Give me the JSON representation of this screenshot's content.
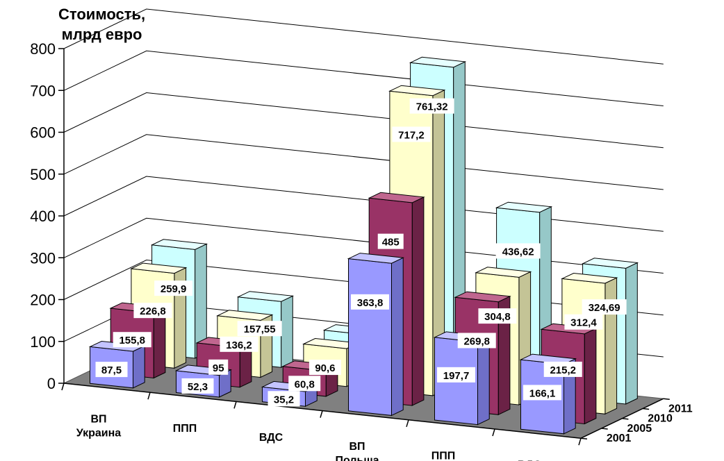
{
  "chart_data": {
    "type": "bar",
    "ylabel": [
      "Стоимость,",
      "млрд евро"
    ],
    "ylim": [
      0,
      800
    ],
    "yticks": [
      0,
      100,
      200,
      300,
      400,
      500,
      600,
      700,
      800
    ],
    "categories": [
      [
        "ВП",
        "Украина"
      ],
      [
        "ППП"
      ],
      [
        "ВДС"
      ],
      [
        "ВП",
        "Польша"
      ],
      [
        "ППП"
      ],
      [
        "ВДС"
      ]
    ],
    "series": [
      {
        "name": "2001",
        "values": [
          87.5,
          52.3,
          35.2,
          363.8,
          197.7,
          166.1
        ],
        "labels": [
          "87,5",
          "52,3",
          "35,2",
          "363,8",
          "197,7",
          "166,1"
        ]
      },
      {
        "name": "2005",
        "values": [
          155.8,
          95,
          60.8,
          485,
          269.8,
          215.2
        ],
        "labels": [
          "155,8",
          "95",
          "60,8",
          "485",
          "269,8",
          "215,2"
        ]
      },
      {
        "name": "2010",
        "values": [
          226.8,
          136.2,
          90.6,
          717.2,
          304.8,
          312.4
        ],
        "labels": [
          "226,8",
          "136,2",
          "90,6",
          "717,2",
          "304,8",
          "312,4"
        ]
      },
      {
        "name": "2011",
        "values": [
          259.9,
          157.55,
          100,
          761.32,
          436.62,
          324.69
        ],
        "labels": [
          "259,9",
          "157,55",
          "",
          "761,32",
          "436,62",
          "324,69"
        ]
      }
    ],
    "colors": {
      "2001": {
        "front": "#9999ff",
        "top": "#c4c4ff",
        "side": "#6f6fc8"
      },
      "2005": {
        "front": "#993366",
        "top": "#c0668f",
        "side": "#6b2246"
      },
      "2010": {
        "front": "#ffffcc",
        "top": "#ffffe6",
        "side": "#c4c496"
      },
      "2011": {
        "front": "#ccffff",
        "top": "#e6ffff",
        "side": "#96c8c8"
      }
    },
    "floor_color": "#808080",
    "grid": true
  }
}
